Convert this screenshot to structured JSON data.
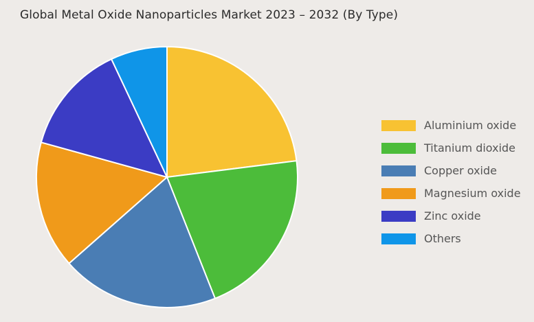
{
  "chart_data": {
    "type": "pie",
    "title": "Global Metal Oxide Nanoparticles Market 2023 – 2032 (By Type)",
    "categories": [
      "Aluminium oxide",
      "Titanium dioxide",
      "Copper oxide",
      "Magnesium oxide",
      "Zinc oxide",
      "Others"
    ],
    "values": [
      23.0,
      21.0,
      19.5,
      15.8,
      13.7,
      7.0
    ],
    "unit": "%",
    "colors": [
      "#f8c232",
      "#4cbc3a",
      "#4a7db4",
      "#f09a1a",
      "#3b3cc4",
      "#0f95e8"
    ],
    "legend": "right"
  }
}
